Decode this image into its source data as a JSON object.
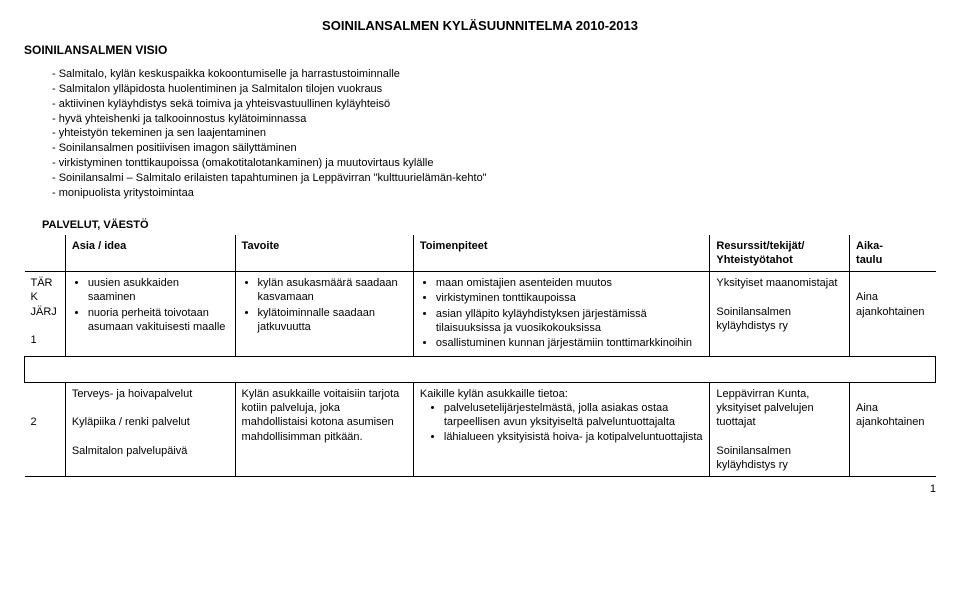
{
  "doc": {
    "title": "SOINILANSALMEN KYLÄSUUNNITELMA 2010-2013",
    "vision_head": "SOINILANSALMEN VISIO",
    "vision_items": [
      "- Salmitalo, kylän keskuspaikka kokoontumiselle ja harrastustoiminnalle",
      "- Salmitalon ylläpidosta huolentiminen ja Salmitalon tilojen vuokraus",
      "- aktiivinen kyläyhdistys sekä toimiva ja yhteisvastuullinen kyläyhteisö",
      "- hyvä yhteishenki ja talkooinnostus kylätoiminnassa",
      "- yhteistyön tekeminen ja sen laajentaminen",
      "- Soinilansalmen positiivisen imagon säilyttäminen",
      "- virkistyminen tonttikaupoissa (omakotitalotankaminen) ja muutovirtaus kylälle",
      "- Soinilansalmi – Salmitalo erilaisten tapahtuminen ja Leppävirran \"kulttuurielämän-kehto\"",
      "- monipuolista yritystoimintaa"
    ],
    "subhead": "PALVELUT, VÄESTÖ",
    "headers": {
      "c0": "",
      "c1": "Asia / idea",
      "c2": "Tavoite",
      "c3": "Toimenpiteet",
      "c4a": "Resurssit/tekijät/",
      "c4b": "Yhteistyötahot",
      "c5a": "Aika-",
      "c5b": "taulu"
    },
    "row1": {
      "id_l1": "TÄR",
      "id_l2": "K",
      "id_l3": "JÄRJ",
      "id_l4": "1",
      "asia": [
        "uusien asukkaiden saaminen",
        "nuoria perheitä toivotaan asumaan vakituisesti maalle"
      ],
      "tavoite": [
        "kylän asukasmäärä saadaan kasvamaan",
        "kylätoiminnalle saadaan jatkuvuutta"
      ],
      "toimet": [
        "maan omistajien asenteiden muutos",
        "virkistyminen tonttikaupoissa",
        "asian ylläpito kyläyhdistyksen järjestämissä tilaisuuksissa ja vuosikokouksissa",
        "osallistuminen kunnan järjestämiin tonttimarkkinoihin"
      ],
      "res_l1": "Yksityiset maanomistajat",
      "res_l2": "Soinilansalmen kyläyhdistys ry",
      "aika": "Aina ajankohtainen"
    },
    "row2": {
      "id": "2",
      "asia_l1": "Terveys- ja hoivapalvelut",
      "asia_l2": "Kyläpiika / renki palvelut",
      "asia_l3": "Salmitalon palvelupäivä",
      "tavoite": "Kylän asukkaille voitaisiin tarjota kotiin palveluja, joka mahdollistaisi kotona asumisen mahdollisimman pitkään.",
      "toimet_head": "Kaikille kylän asukkaille tietoa:",
      "toimet": [
        "palvelusetelijärjestelmästä, jolla asiakas ostaa tarpeellisen avun yksityiseltä palveluntuottajalta",
        "lähialueen yksityisistä hoiva- ja kotipalveluntuottajista"
      ],
      "res_l1": "Leppävirran Kunta, yksityiset palvelujen tuottajat",
      "res_l2": "Soinilansalmen kyläyhdistys ry",
      "aika": "Aina ajankohtainen"
    },
    "pagenum": "1"
  }
}
